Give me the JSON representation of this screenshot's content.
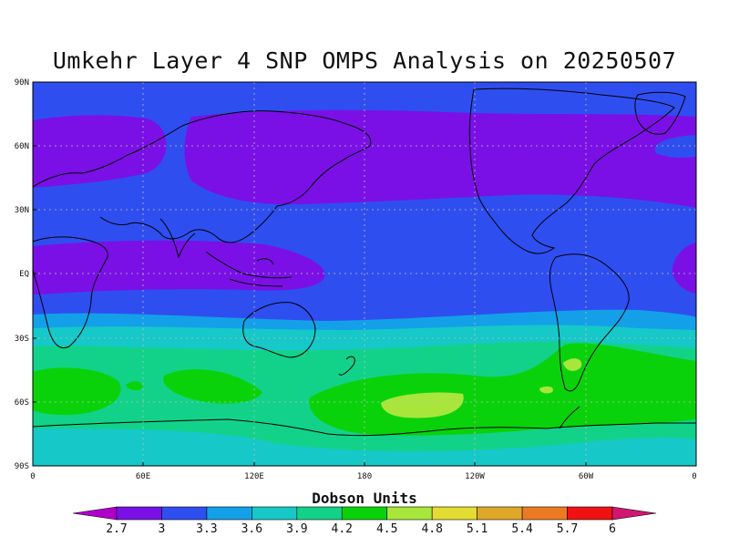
{
  "title": "Umkehr Layer 4 SNP OMPS Analysis on 20250507",
  "colorbar_label": "Dobson Units",
  "lat_ticks": [
    "90N",
    "60N",
    "30N",
    "EQ",
    "30S",
    "60S",
    "90S"
  ],
  "lon_ticks": [
    "0",
    "60E",
    "120E",
    "180",
    "120W",
    "60W",
    "0"
  ],
  "legend": {
    "levels": [
      "2.7",
      "3",
      "3.3",
      "3.6",
      "3.9",
      "4.2",
      "4.5",
      "4.8",
      "5.1",
      "5.4",
      "5.7",
      "6"
    ],
    "colors": [
      "#b000c8",
      "#7a10e6",
      "#2f4ef0",
      "#13a0e8",
      "#16c8c8",
      "#12d28a",
      "#0ad20a",
      "#a8e63c",
      "#e4dc32",
      "#e0a828",
      "#ec7a22",
      "#f01212",
      "#d01670"
    ]
  },
  "chart_data": {
    "type": "heatmap",
    "title": "Umkehr Layer 4 SNP OMPS Analysis on 20250507",
    "colorbar_label": "Dobson Units",
    "x_ticks": [
      "0",
      "60E",
      "120E",
      "180",
      "120W",
      "60W",
      "0"
    ],
    "y_ticks": [
      "90N",
      "60N",
      "30N",
      "EQ",
      "30S",
      "60S",
      "90S"
    ],
    "levels": [
      2.7,
      3,
      3.3,
      3.6,
      3.9,
      4.2,
      4.5,
      4.8,
      5.1,
      5.4,
      5.7,
      6
    ],
    "grid": true
  }
}
